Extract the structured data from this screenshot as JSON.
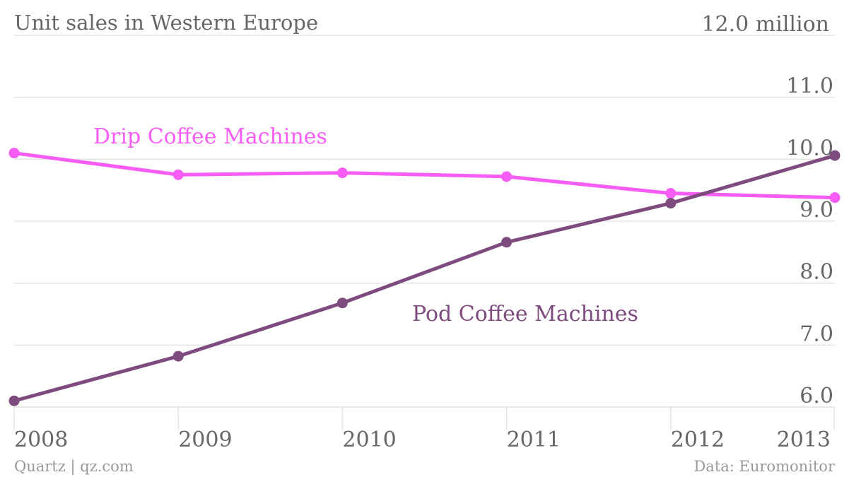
{
  "header": {
    "title": "Unit sales in Western Europe",
    "top_tick_label": "12.0 million"
  },
  "footer": {
    "credit": "Quartz | qz.com",
    "source": "Data: Euromonitor"
  },
  "colors": {
    "drip": "#f75cf5",
    "pod": "#7e4b7e",
    "grid": "#e3e3e3",
    "text": "#666666",
    "footer_text": "#999999"
  },
  "chart_data": {
    "type": "line",
    "title": "Unit sales in Western Europe",
    "x": [
      "2008",
      "2009",
      "2010",
      "2011",
      "2012",
      "2013"
    ],
    "y_unit": "million",
    "ylim": [
      5.8,
      12.0
    ],
    "y_ticks": [
      6.0,
      7.0,
      8.0,
      9.0,
      10.0,
      11.0,
      12.0
    ],
    "y_tick_labels": [
      "6.0",
      "7.0",
      "8.0",
      "9.0",
      "10.0",
      "11.0",
      "12.0 million"
    ],
    "grid": true,
    "series": [
      {
        "name": "Drip Coffee Machines",
        "key": "drip",
        "values": [
          10.1,
          9.75,
          9.78,
          9.72,
          9.45,
          9.38
        ]
      },
      {
        "name": "Pod Coffee Machines",
        "key": "pod",
        "values": [
          6.1,
          6.82,
          7.68,
          8.66,
          9.29,
          10.06
        ]
      }
    ]
  }
}
